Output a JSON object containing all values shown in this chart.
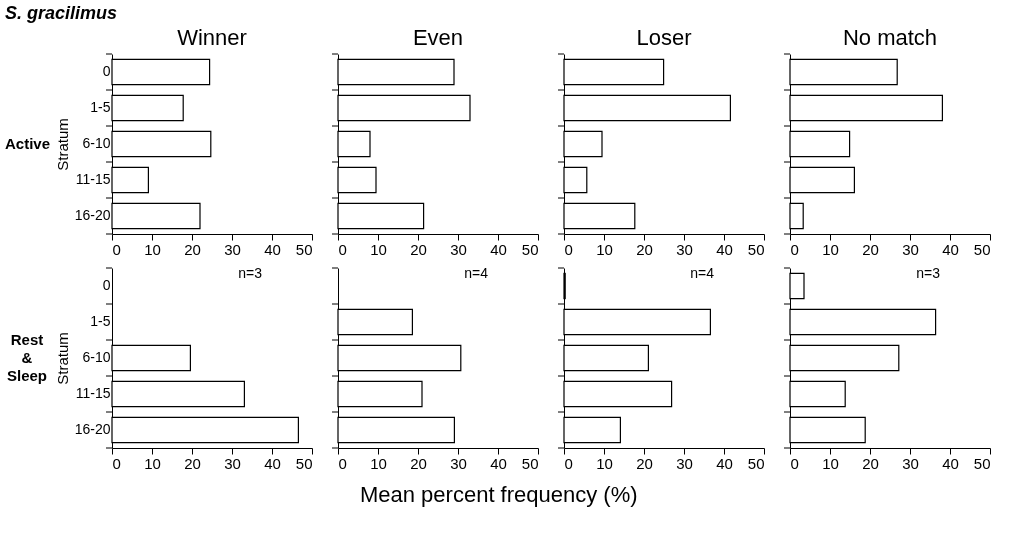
{
  "chart_data": [
    {
      "type": "bar",
      "orientation": "horizontal",
      "title": "Winner",
      "ylabel": "Stratum",
      "annotations": [
        "S. gracilimus",
        "Active"
      ],
      "categories": [
        "0",
        "1-5",
        "6-10",
        "11-15",
        "16-20"
      ],
      "values": [
        24.4,
        17.8,
        24.7,
        9.1,
        22.0
      ],
      "color": "#ffffff",
      "xlim": [
        0,
        50
      ],
      "xticks": [
        0,
        10,
        20,
        30,
        40,
        50
      ],
      "grid": false,
      "legend": false
    },
    {
      "type": "bar",
      "orientation": "horizontal",
      "title": "Even",
      "categories": [
        null,
        null,
        null,
        null,
        null
      ],
      "values": [
        29.0,
        33.0,
        8.0,
        9.5,
        21.4
      ],
      "color": "#ffffff",
      "xlim": [
        0,
        50
      ],
      "xticks": [
        0,
        10,
        20,
        30,
        40,
        50
      ],
      "tick_labels": "x",
      "grid": false,
      "legend": false
    },
    {
      "type": "bar",
      "orientation": "horizontal",
      "title": "Loser",
      "categories": [
        null,
        null,
        null,
        null,
        null
      ],
      "values": [
        24.9,
        41.6,
        9.5,
        5.7,
        17.7
      ],
      "color": "#ffffff",
      "xlim": [
        0,
        50
      ],
      "xticks": [
        0,
        10,
        20,
        30,
        40,
        50
      ],
      "tick_labels": "x",
      "grid": false,
      "legend": false
    },
    {
      "type": "bar",
      "orientation": "horizontal",
      "title": "No match",
      "categories": [
        null,
        null,
        null,
        null,
        null
      ],
      "values": [
        26.8,
        38.1,
        14.9,
        16.1,
        3.3
      ],
      "color": "#ffffff",
      "xlim": [
        0,
        50
      ],
      "xticks": [
        0,
        10,
        20,
        30,
        40,
        50
      ],
      "tick_labels": "x",
      "grid": false,
      "legend": false
    },
    {
      "type": "bar",
      "orientation": "horizontal",
      "ylabel": "Stratum",
      "xlabel": "Mean percent frequency (%)",
      "annotations": [
        "n=3",
        "Rest & Sleep"
      ],
      "categories": [
        "0",
        "1-5",
        "6-10",
        "11-15",
        "16-20"
      ],
      "values": [
        null,
        null,
        19.6,
        33.1,
        46.6
      ],
      "color": "#ffffff",
      "xlim": [
        0,
        50
      ],
      "xticks": [
        0,
        10,
        20,
        30,
        40,
        50
      ],
      "grid": false,
      "legend": false
    },
    {
      "type": "bar",
      "orientation": "horizontal",
      "annotations": [
        "n=4"
      ],
      "categories": [
        null,
        null,
        null,
        null,
        null
      ],
      "values": [
        null,
        18.6,
        30.7,
        21.0,
        29.1
      ],
      "color": "#ffffff",
      "xlim": [
        0,
        50
      ],
      "xticks": [
        0,
        10,
        20,
        30,
        40,
        50
      ],
      "tick_labels": "x",
      "grid": false,
      "legend": false
    },
    {
      "type": "bar",
      "orientation": "horizontal",
      "annotations": [
        "n=4"
      ],
      "categories": [
        null,
        null,
        null,
        null,
        null
      ],
      "values": [
        0.3,
        36.6,
        21.1,
        26.9,
        14.1
      ],
      "color": "#ffffff",
      "xlim": [
        0,
        50
      ],
      "xticks": [
        0,
        10,
        20,
        30,
        40,
        50
      ],
      "tick_labels": "x",
      "grid": false,
      "legend": false
    },
    {
      "type": "bar",
      "orientation": "horizontal",
      "annotations": [
        "n=3"
      ],
      "categories": [
        null,
        null,
        null,
        null,
        null
      ],
      "values": [
        3.5,
        36.4,
        27.2,
        13.8,
        18.8
      ],
      "color": "#ffffff",
      "xlim": [
        0,
        50
      ],
      "xticks": [
        0,
        10,
        20,
        30,
        40,
        50
      ],
      "tick_labels": "x",
      "grid": false,
      "legend": false
    }
  ]
}
